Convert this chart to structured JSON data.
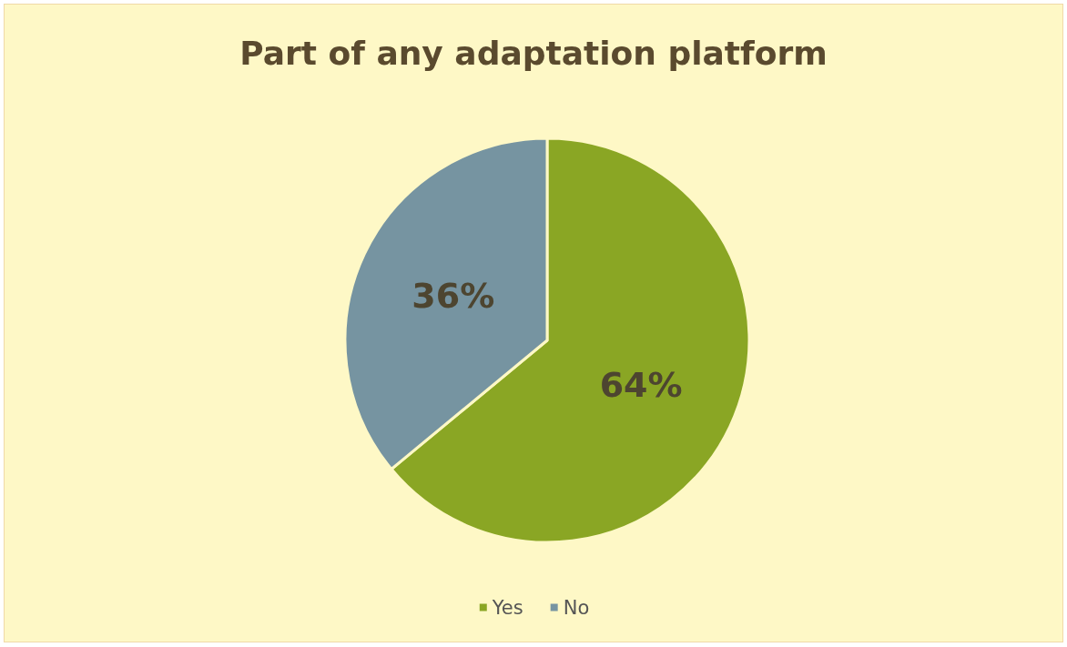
{
  "chart_data": {
    "type": "pie",
    "title": "Part of any adaptation platform",
    "categories": [
      "Yes",
      "No"
    ],
    "values": [
      64,
      36
    ],
    "colors": [
      "#8aa624",
      "#7694a1"
    ],
    "value_labels": [
      "64%",
      "36%"
    ],
    "legend": "bottom"
  }
}
